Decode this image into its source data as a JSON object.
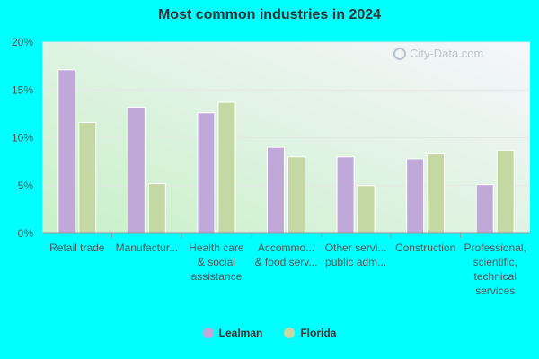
{
  "chart_data": {
    "type": "bar",
    "title": "Most common industries in 2024",
    "categories": [
      [
        "Retail trade"
      ],
      [
        "Manufactur..."
      ],
      [
        "Health care",
        "& social",
        "assistance"
      ],
      [
        "Accommo...",
        "& food serv..."
      ],
      [
        "Other servi...",
        "public adm..."
      ],
      [
        "Construction"
      ],
      [
        "Professional,",
        "scientific,",
        "technical",
        "services"
      ]
    ],
    "series": [
      {
        "name": "Lealman",
        "color": "#c0a8d8",
        "values": [
          17.1,
          13.2,
          12.6,
          9.0,
          8.0,
          7.8,
          5.1
        ]
      },
      {
        "name": "Florida",
        "color": "#c4d8a4",
        "values": [
          11.6,
          5.2,
          13.7,
          8.0,
          5.0,
          8.3,
          8.7
        ]
      }
    ],
    "ylim": [
      0,
      20
    ],
    "yticks": [
      "0%",
      "5%",
      "10%",
      "15%",
      "20%"
    ],
    "ytick_values": [
      0,
      5,
      10,
      15,
      20
    ],
    "grid": true,
    "legend_position": "bottom",
    "xlabel": "",
    "ylabel": ""
  },
  "watermark": "City-Data.com"
}
